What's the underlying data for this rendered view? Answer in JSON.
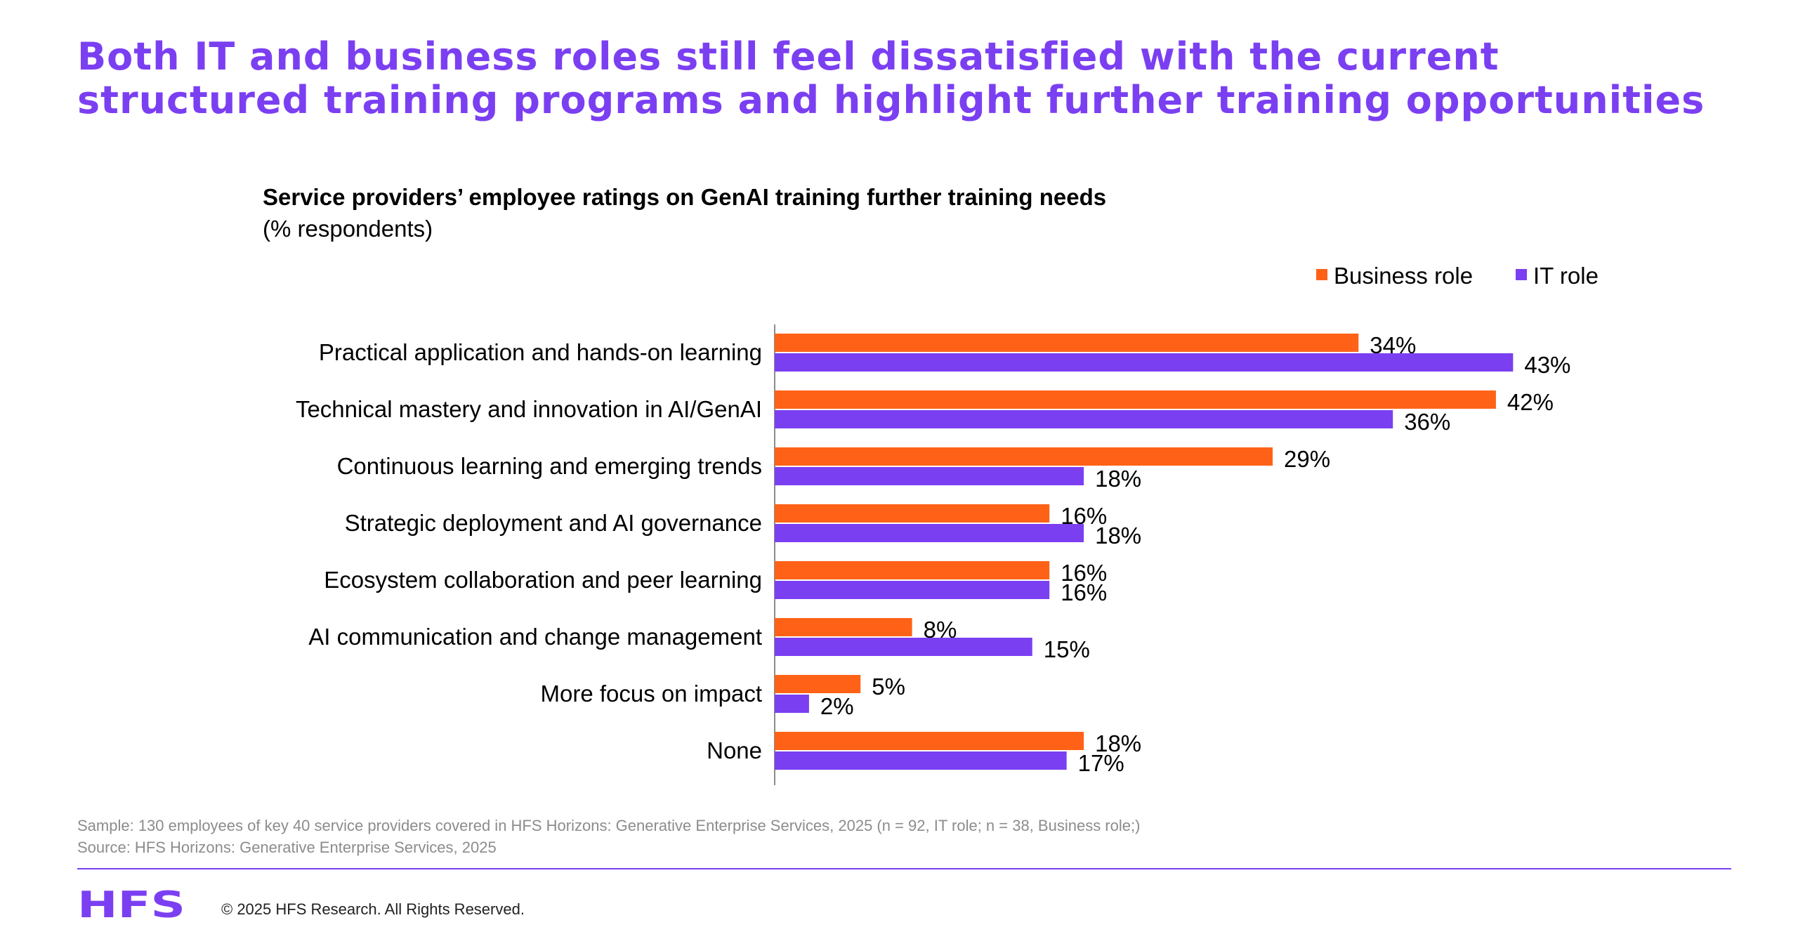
{
  "header": {
    "headline": "Both IT and business roles still feel dissatisfied with the current structured training programs and highlight further training opportunities"
  },
  "chart_data": {
    "type": "bar",
    "orientation": "horizontal",
    "title": "Service providers’ employee ratings on GenAI training further training needs",
    "subtitle": "(% respondents)",
    "categories": [
      "Practical application and hands-on learning",
      "Technical mastery and innovation in AI/GenAI",
      "Continuous learning and emerging trends",
      "Strategic deployment and AI governance",
      "Ecosystem collaboration and peer learning",
      "AI communication and change management",
      "More focus on impact",
      "None"
    ],
    "series": [
      {
        "name": "Business role",
        "color": "#ff6217",
        "values": [
          34,
          42,
          29,
          16,
          16,
          8,
          5,
          18
        ]
      },
      {
        "name": "IT role",
        "color": "#7b3ff2",
        "values": [
          43,
          36,
          18,
          18,
          16,
          15,
          2,
          17
        ]
      }
    ],
    "value_suffix": "%",
    "xlim": [
      0,
      50
    ],
    "grid": false,
    "legend_position": "top-right"
  },
  "footer": {
    "sample": "Sample: 130 employees of key 40 service providers covered in HFS Horizons: Generative Enterprise Services, 2025 (n = 92, IT role; n = 38, Business role;)",
    "source": "Source: HFS Horizons: Generative Enterprise Services, 2025",
    "logo_text": "HFS",
    "copyright": "© 2025 HFS Research. All Rights Reserved."
  }
}
